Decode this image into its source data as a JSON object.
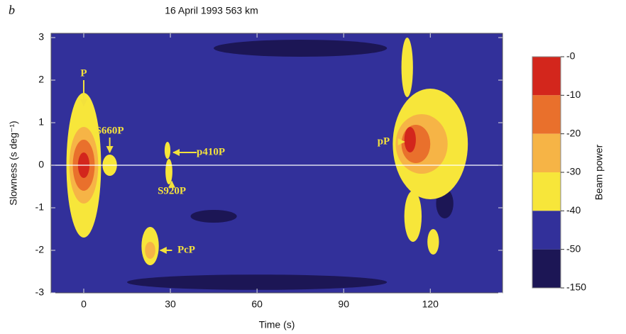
{
  "chart_data": {
    "type": "heatmap",
    "panel_label": "b",
    "title": "16 April 1993 563 km",
    "x_label": "Time (s)",
    "y_label": "Slowness (s deg⁻¹)",
    "xlim": [
      -11.3,
      145
    ],
    "ylim": [
      -3,
      3.1
    ],
    "xticks": [
      0,
      30,
      60,
      90,
      120
    ],
    "yticks": [
      3,
      2,
      1,
      0,
      -1,
      -2,
      -3
    ],
    "zero_line": true,
    "colorbar": {
      "label": "Beam power",
      "ticks": [
        {
          "value": 0,
          "label": "-0"
        },
        -10,
        -20,
        -30,
        -40,
        -50,
        -150
      ],
      "colors": [
        "#d3261c",
        "#e9702c",
        "#f6b446",
        "#f7e63a",
        "#32309a",
        "#1c1655"
      ]
    },
    "background_level": -50,
    "patches": [
      {
        "x": 60,
        "y": -2.75,
        "rx": 45,
        "ry": 0.18,
        "level": -150
      },
      {
        "x": 75,
        "y": 2.75,
        "rx": 30,
        "ry": 0.2,
        "level": -150
      },
      {
        "x": 125,
        "y": -0.9,
        "rx": 3,
        "ry": 0.35,
        "level": -150
      },
      {
        "x": 45,
        "y": -1.2,
        "rx": 8,
        "ry": 0.15,
        "level": -150
      },
      {
        "x": 0,
        "y": 0,
        "rx": 6,
        "ry": 1.7,
        "level": -40
      },
      {
        "x": 0,
        "y": 0,
        "rx": 5,
        "ry": 0.9,
        "level": -30
      },
      {
        "x": 0,
        "y": 0,
        "rx": 3.8,
        "ry": 0.6,
        "level": -20
      },
      {
        "x": 0,
        "y": 0,
        "rx": 2,
        "ry": 0.3,
        "level": -10
      },
      {
        "x": 9,
        "y": 0,
        "rx": 2.5,
        "ry": 0.25,
        "level": -40
      },
      {
        "x": 29,
        "y": 0.35,
        "rx": 1,
        "ry": 0.2,
        "level": -40
      },
      {
        "x": 29.5,
        "y": -0.15,
        "rx": 1.2,
        "ry": 0.3,
        "level": -40
      },
      {
        "x": 23,
        "y": -1.9,
        "rx": 3,
        "ry": 0.45,
        "level": -40
      },
      {
        "x": 23,
        "y": -2,
        "rx": 1.8,
        "ry": 0.2,
        "level": -30
      },
      {
        "x": 120,
        "y": 0.5,
        "rx": 13,
        "ry": 1.3,
        "level": -40
      },
      {
        "x": 112,
        "y": 2.3,
        "rx": 2,
        "ry": 0.7,
        "level": -40
      },
      {
        "x": 114,
        "y": -1.2,
        "rx": 3,
        "ry": 0.6,
        "level": -40
      },
      {
        "x": 121,
        "y": -1.8,
        "rx": 2,
        "ry": 0.3,
        "level": -40
      },
      {
        "x": 117,
        "y": 0.5,
        "rx": 9,
        "ry": 0.7,
        "level": -30
      },
      {
        "x": 115,
        "y": 0.5,
        "rx": 5,
        "ry": 0.45,
        "level": -20
      },
      {
        "x": 113,
        "y": 0.6,
        "rx": 2,
        "ry": 0.3,
        "level": -10
      }
    ],
    "annotations": [
      {
        "text": "P",
        "x": 0,
        "y": 1.4,
        "text_x": 0,
        "text_y": 2.15
      },
      {
        "text": "S660P",
        "x": 9,
        "y": 0.3,
        "text_x": 9,
        "text_y": 0.8
      },
      {
        "text": "p410P",
        "x": 31,
        "y": 0.3,
        "text_x": 44,
        "text_y": 0.3
      },
      {
        "text": "S920P",
        "x": 30.5,
        "y": -0.38,
        "text_x": 30.5,
        "text_y": -0.62
      },
      {
        "text": "PcP",
        "x": 26.5,
        "y": -2.0,
        "text_x": 35.5,
        "text_y": -2.0
      },
      {
        "text": "pP",
        "x": 111,
        "y": 0.55,
        "text_x": 105,
        "text_y": 0.55
      }
    ]
  }
}
